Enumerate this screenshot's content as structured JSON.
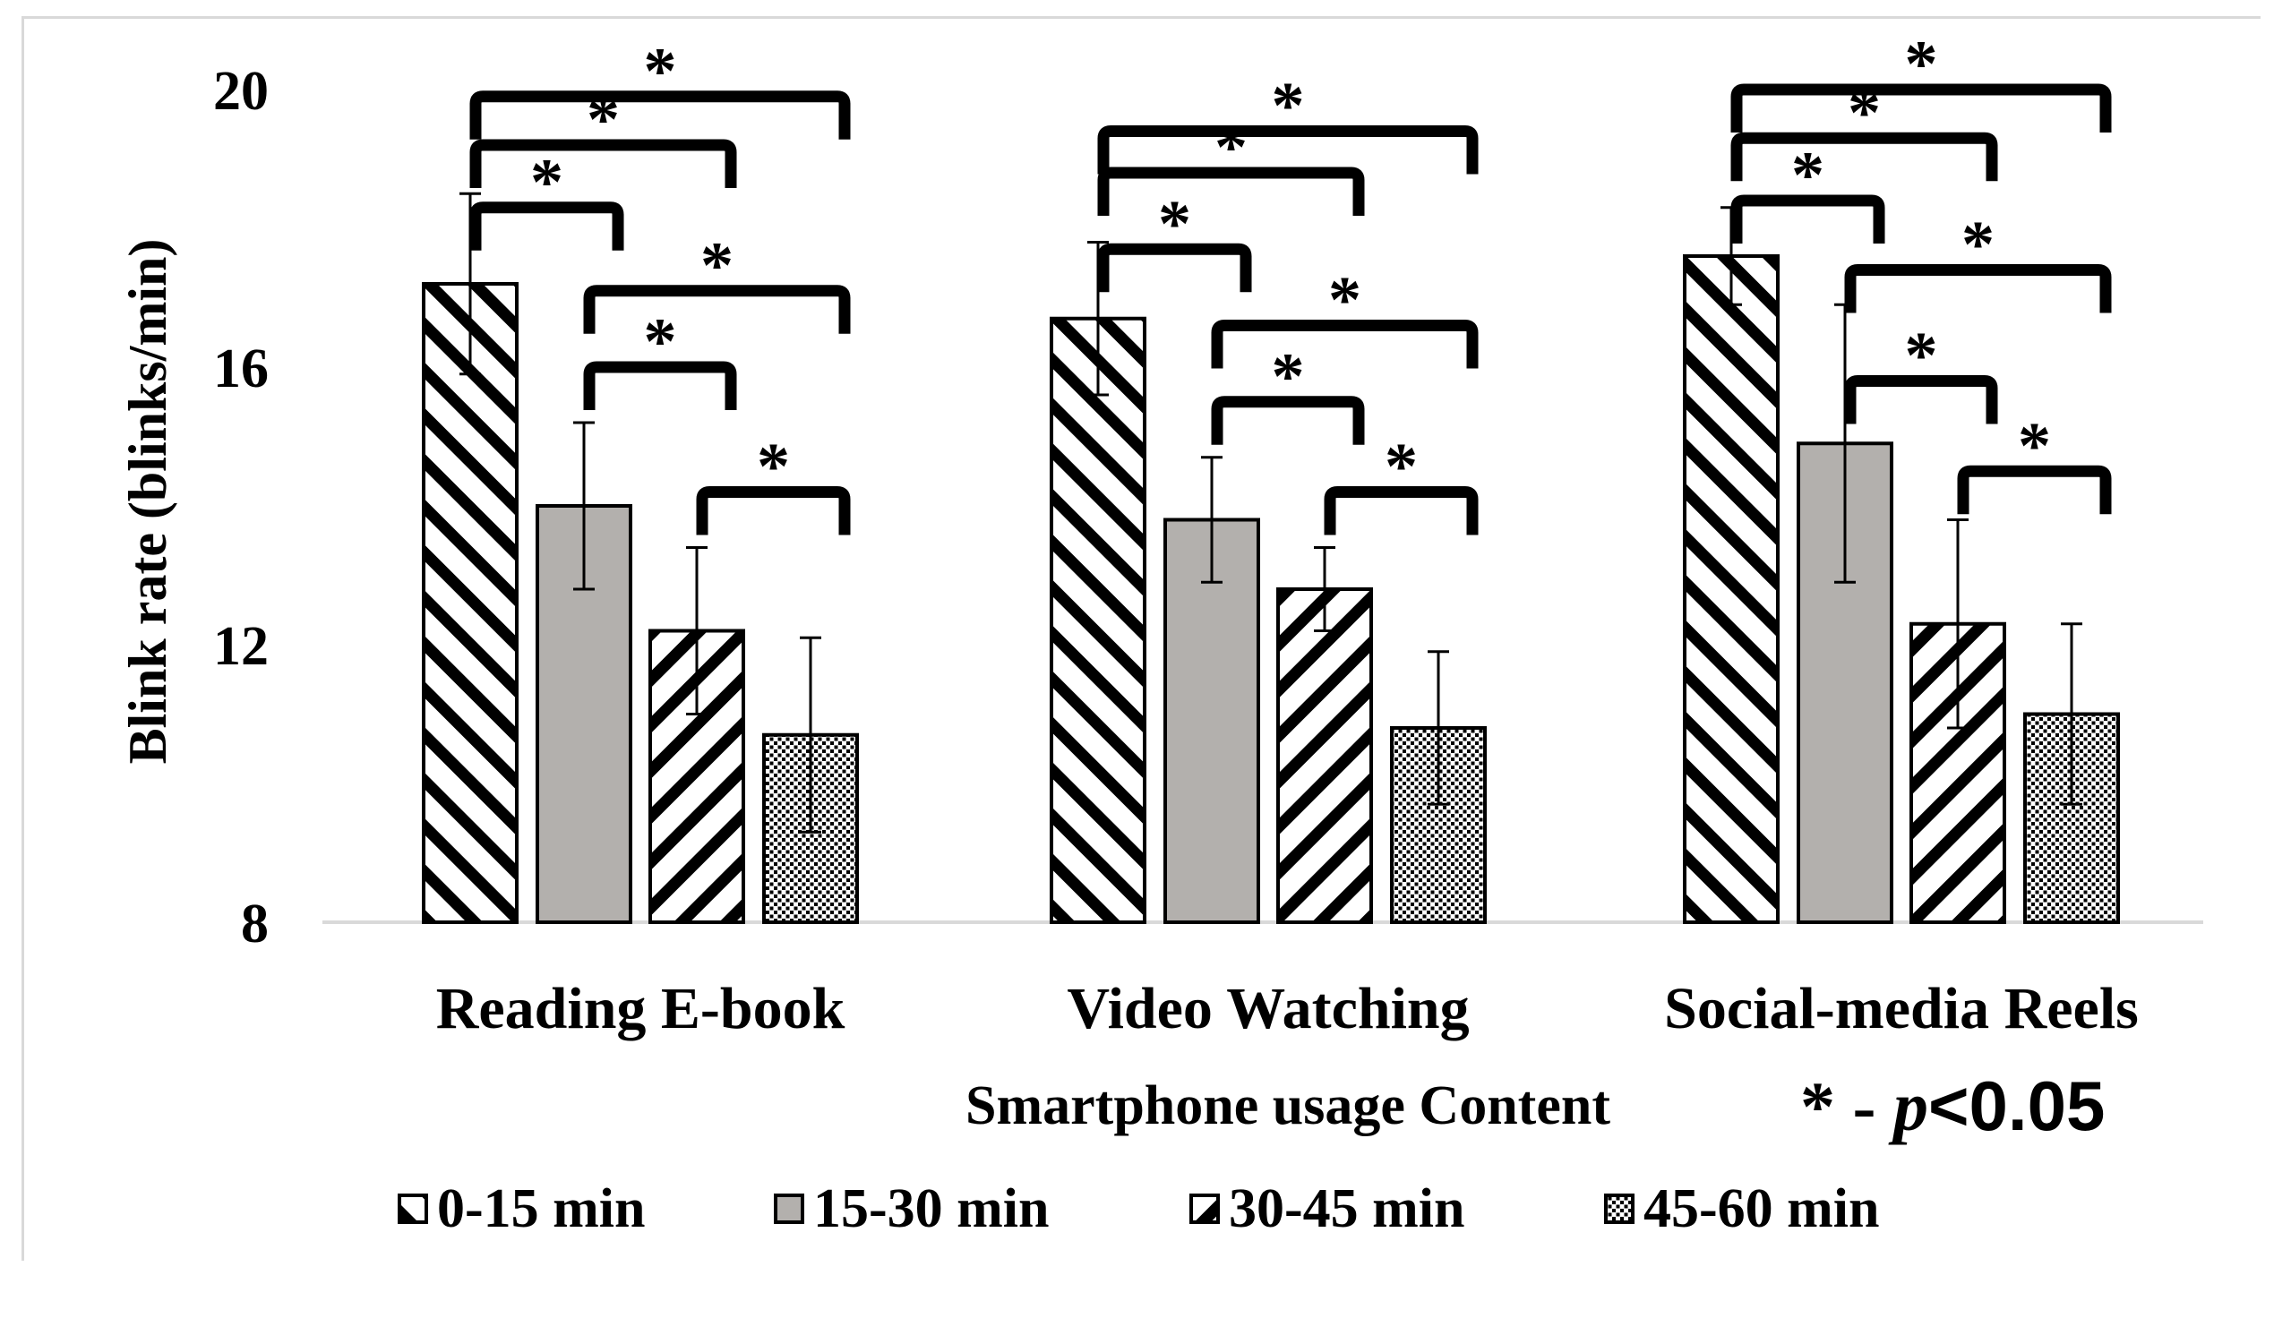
{
  "chart_data": {
    "type": "bar",
    "title": "",
    "xlabel": "Smartphone usage Content",
    "ylabel": "Blink rate (blinks/min)",
    "ylim": [
      8,
      20
    ],
    "yticks": [
      "8",
      "12",
      "16",
      "20"
    ],
    "grid": false,
    "legend_position": "bottom",
    "categories": [
      "Reading E-book",
      "Video Watching",
      "Social-media Reels"
    ],
    "series": [
      {
        "name": "0-15 min",
        "pattern": "diag-left",
        "values": [
          17.2,
          16.7,
          17.6
        ],
        "err": [
          1.3,
          1.1,
          0.7
        ]
      },
      {
        "name": "15-30 min",
        "pattern": "solid-gray",
        "values": [
          14.0,
          13.8,
          14.9
        ],
        "err": [
          1.2,
          0.9,
          2.0
        ]
      },
      {
        "name": "30-45 min",
        "pattern": "diag-right",
        "values": [
          12.2,
          12.8,
          12.3
        ],
        "err": [
          1.2,
          0.6,
          1.5
        ]
      },
      {
        "name": "45-60 min",
        "pattern": "dots",
        "values": [
          10.7,
          10.8,
          11.0
        ],
        "err": [
          1.4,
          1.1,
          1.3
        ]
      }
    ],
    "significance": {
      "label": "*",
      "note_star": "* - ",
      "note_p": "p",
      "note_value": "<0.05",
      "brackets": [
        {
          "category": 0,
          "from": 0,
          "to": 1,
          "level": 18.3
        },
        {
          "category": 0,
          "from": 0,
          "to": 2,
          "level": 19.2
        },
        {
          "category": 0,
          "from": 0,
          "to": 3,
          "level": 19.9
        },
        {
          "category": 0,
          "from": 1,
          "to": 2,
          "level": 16.0
        },
        {
          "category": 0,
          "from": 1,
          "to": 3,
          "level": 17.1
        },
        {
          "category": 0,
          "from": 2,
          "to": 3,
          "level": 14.2
        },
        {
          "category": 1,
          "from": 0,
          "to": 1,
          "level": 17.7
        },
        {
          "category": 1,
          "from": 0,
          "to": 2,
          "level": 18.8
        },
        {
          "category": 1,
          "from": 0,
          "to": 3,
          "level": 19.4
        },
        {
          "category": 1,
          "from": 1,
          "to": 2,
          "level": 15.5
        },
        {
          "category": 1,
          "from": 1,
          "to": 3,
          "level": 16.6
        },
        {
          "category": 1,
          "from": 2,
          "to": 3,
          "level": 14.2
        },
        {
          "category": 2,
          "from": 0,
          "to": 1,
          "level": 18.4
        },
        {
          "category": 2,
          "from": 0,
          "to": 2,
          "level": 19.3
        },
        {
          "category": 2,
          "from": 0,
          "to": 3,
          "level": 20.0
        },
        {
          "category": 2,
          "from": 1,
          "to": 2,
          "level": 15.8
        },
        {
          "category": 2,
          "from": 1,
          "to": 3,
          "level": 17.4
        },
        {
          "category": 2,
          "from": 2,
          "to": 3,
          "level": 14.5
        }
      ]
    }
  }
}
